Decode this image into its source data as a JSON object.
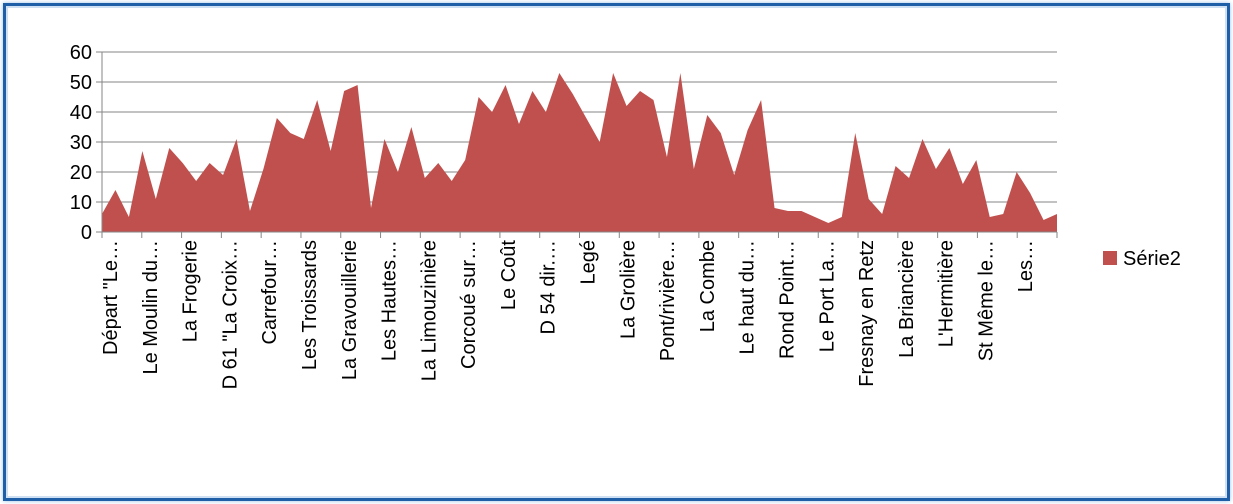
{
  "chart_data": {
    "type": "area",
    "title": "",
    "xlabel": "",
    "ylabel": "",
    "ylim": [
      0,
      60
    ],
    "yticks": [
      0,
      10,
      20,
      30,
      40,
      50,
      60
    ],
    "grid": true,
    "legend_position": "right",
    "colors": {
      "series": "#c0504d",
      "grid": "#868686",
      "axis": "#868686",
      "frame": "#1f5fa8"
    },
    "x_tick_labels": [
      "Départ \"Le…",
      "Le Moulin du…",
      "La Frogerie",
      "D 61 \"La Croix…",
      "Carrefour…",
      "Les Troissards",
      "La Gravouillerie",
      "Les Hautes…",
      "La Limouzinière",
      "Corcoué sur…",
      "Le Coût",
      "D 54 dir.…",
      "Legé",
      "La Grolière",
      "Pont/rivière…",
      "La Combe",
      "Le haut du…",
      "Rond Point…",
      "Le Port La…",
      "Fresnay en Retz",
      "La Briancière",
      "L'Hermitière",
      "St Même le…",
      "Les…"
    ],
    "series": [
      {
        "name": "Série2",
        "values": [
          6,
          14,
          5,
          27,
          11,
          28,
          23,
          17,
          23,
          19,
          31,
          7,
          21,
          38,
          33,
          31,
          44,
          27,
          47,
          49,
          8,
          31,
          20,
          35,
          18,
          23,
          17,
          24,
          45,
          40,
          49,
          36,
          47,
          40,
          53,
          46,
          38,
          30,
          53,
          42,
          47,
          44,
          25,
          53,
          21,
          39,
          33,
          19,
          34,
          44,
          8,
          7,
          7,
          5,
          3,
          5,
          33,
          11,
          6,
          22,
          18,
          31,
          21,
          28,
          16,
          24,
          5,
          6,
          20,
          13,
          4,
          6
        ]
      }
    ]
  }
}
